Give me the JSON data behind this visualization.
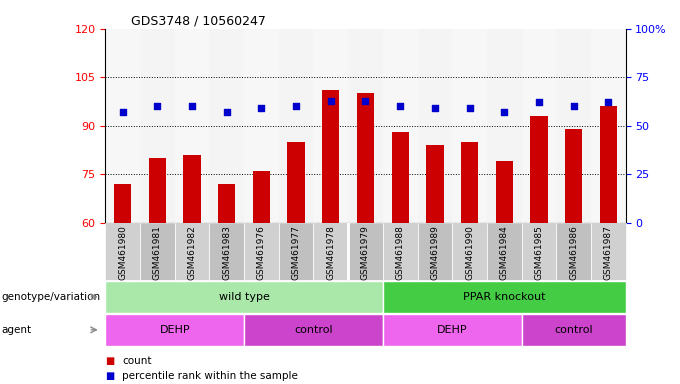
{
  "title": "GDS3748 / 10560247",
  "samples": [
    "GSM461980",
    "GSM461981",
    "GSM461982",
    "GSM461983",
    "GSM461976",
    "GSM461977",
    "GSM461978",
    "GSM461979",
    "GSM461988",
    "GSM461989",
    "GSM461990",
    "GSM461984",
    "GSM461985",
    "GSM461986",
    "GSM461987"
  ],
  "bar_values": [
    72,
    80,
    81,
    72,
    76,
    85,
    101,
    100,
    88,
    84,
    85,
    79,
    93,
    89,
    96
  ],
  "dot_values_pct": [
    57,
    60,
    60,
    57,
    59,
    60,
    63,
    63,
    60,
    59,
    59,
    57,
    62,
    60,
    62
  ],
  "bar_color": "#cc0000",
  "dot_color": "#0000cc",
  "ylim_left": [
    60,
    120
  ],
  "yticks_left": [
    60,
    75,
    90,
    105,
    120
  ],
  "ylim_right": [
    0,
    100
  ],
  "yticks_right": [
    0,
    25,
    50,
    75,
    100
  ],
  "ytick_labels_right": [
    "0",
    "25",
    "50",
    "75",
    "100%"
  ],
  "hlines": [
    75,
    90,
    105
  ],
  "genotype_groups": [
    {
      "label": "wild type",
      "start": 0,
      "end": 7,
      "color": "#aae8aa"
    },
    {
      "label": "PPAR knockout",
      "start": 8,
      "end": 14,
      "color": "#44cc44"
    }
  ],
  "agent_groups": [
    {
      "label": "DEHP",
      "start": 0,
      "end": 3,
      "color": "#ee66ee"
    },
    {
      "label": "control",
      "start": 4,
      "end": 7,
      "color": "#cc44cc"
    },
    {
      "label": "DEHP",
      "start": 8,
      "end": 11,
      "color": "#ee66ee"
    },
    {
      "label": "control",
      "start": 12,
      "end": 14,
      "color": "#cc44cc"
    }
  ],
  "legend_items": [
    {
      "label": "count",
      "color": "#cc0000"
    },
    {
      "label": "percentile rank within the sample",
      "color": "#0000cc"
    }
  ],
  "left_labels": [
    "genotype/variation",
    "agent"
  ],
  "bg_color": "#ffffff",
  "tick_col_colors": [
    "#cccccc",
    "#bbbbbb"
  ],
  "divider_col": 7
}
